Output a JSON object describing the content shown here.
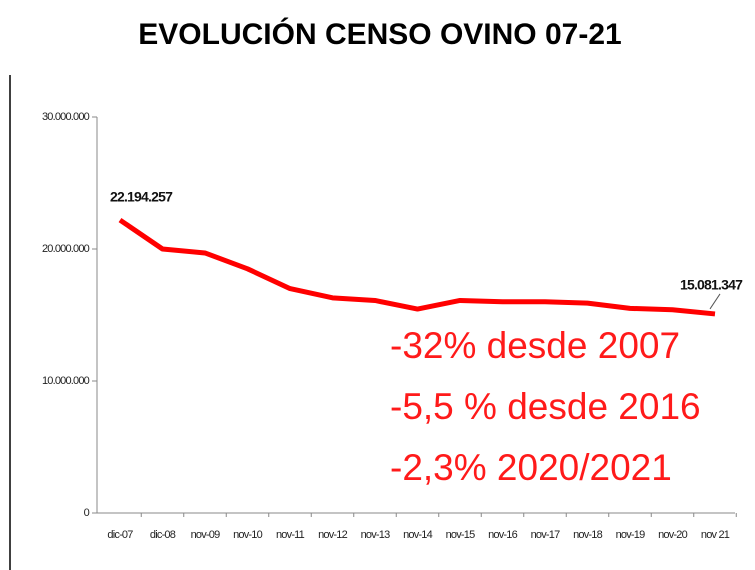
{
  "chart_data": {
    "type": "line",
    "title": "EVOLUCIÓN CENSO OVINO 07-21",
    "categories": [
      "dic-07",
      "dic-08",
      "nov-09",
      "nov-10",
      "nov-11",
      "nov-12",
      "nov-13",
      "nov-14",
      "nov-15",
      "nov-16",
      "nov-17",
      "nov-18",
      "nov-19",
      "nov-20",
      "nov 21"
    ],
    "series": [
      {
        "name": "Censo ovino",
        "color": "#ff0000",
        "values": [
          22194257,
          20000000,
          19700000,
          18500000,
          17000000,
          16300000,
          16100000,
          15450000,
          16100000,
          16000000,
          16000000,
          15900000,
          15500000,
          15400000,
          15081347
        ],
        "value_labels": [
          "22.194.257",
          null,
          null,
          null,
          null,
          null,
          null,
          null,
          null,
          null,
          null,
          null,
          null,
          null,
          "15.081.347"
        ]
      }
    ],
    "ylim": [
      0,
      30000000
    ],
    "yticks": [
      0,
      {
        "value": 10000000,
        "label": "10.000.000"
      },
      {
        "value": 20000000,
        "label": "20.000.000"
      },
      {
        "value": 30000000,
        "label": "30.000.000"
      }
    ],
    "annotations": [
      "-32% desde 2007",
      "-5,5 % desde 2016",
      "-2,3% 2020/2021"
    ],
    "grid": false
  }
}
